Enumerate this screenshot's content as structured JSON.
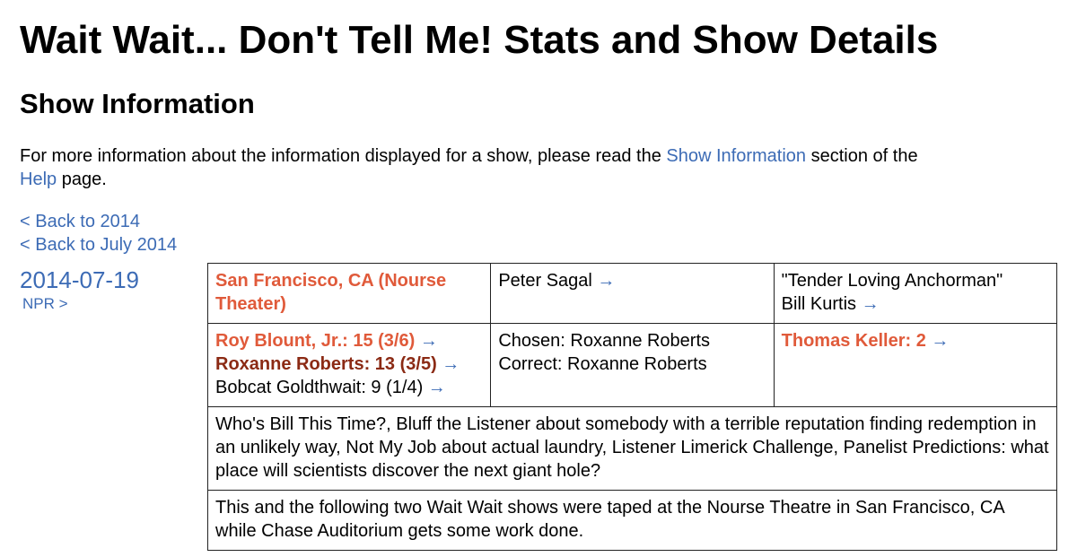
{
  "page": {
    "title": "Wait Wait... Don't Tell Me! Stats and Show Details",
    "section_heading": "Show Information",
    "intro_before_link": "For more information about the information displayed for a show, please read the ",
    "intro_link_show_info": "Show Information",
    "intro_middle": " section of the",
    "intro_link_help": "Help",
    "intro_after": " page."
  },
  "nav": {
    "back_to_year": "< Back to 2014",
    "back_to_month": "< Back to July 2014"
  },
  "show": {
    "date": "2014-07-19",
    "source_link": "NPR >",
    "location": "San Francisco, CA (Nourse Theater)",
    "host": "Peter Sagal",
    "scorekeeper_note": "\"Tender Loving Anchorman\"",
    "scorekeeper": "Bill Kurtis",
    "arrow": "→",
    "panelists": [
      {
        "text": "Roy Blount, Jr.: 15 (3/6)"
      },
      {
        "text": "Roxanne Roberts: 13 (3/5)"
      },
      {
        "text": "Bobcat Goldthwait: 9 (1/4)"
      }
    ],
    "bluff_chosen": "Chosen: Roxanne Roberts",
    "bluff_correct": "Correct: Roxanne Roberts",
    "guest": "Thomas Keller: 2",
    "segments": "Who's Bill This Time?, Bluff the Listener about somebody with a terrible reputation finding redemption in an unlikely way, Not My Job about actual laundry, Listener Limerick Challenge, Panelist Predictions: what place will scientists discover the next giant hole?",
    "notes": "This and the following two Wait Wait shows were taped at the Nourse Theatre in San Francisco, CA while Chase Auditorium gets some work done."
  },
  "colors": {
    "link": "#3c6bb5",
    "location": "#e05a3a",
    "panelist_first": "#e05a3a",
    "panelist_second": "#8b2a14",
    "border": "#222222"
  }
}
